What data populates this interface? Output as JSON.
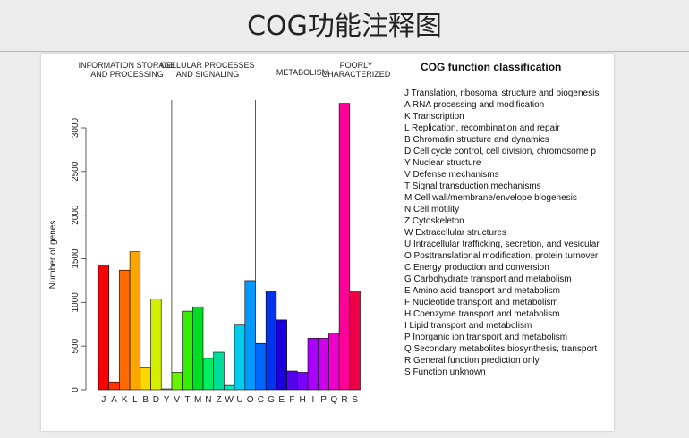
{
  "page": {
    "title": "COG功能注释图"
  },
  "chart_data": {
    "type": "bar",
    "title": "",
    "xlabel": "",
    "ylabel": "Number of genes",
    "ylim": [
      0,
      3300
    ],
    "yticks": [
      0,
      500,
      1000,
      1500,
      2000,
      2500,
      3000
    ],
    "grid": false,
    "categories": [
      "J",
      "A",
      "K",
      "L",
      "B",
      "D",
      "Y",
      "V",
      "T",
      "M",
      "N",
      "Z",
      "W",
      "U",
      "O",
      "C",
      "G",
      "E",
      "F",
      "H",
      "I",
      "P",
      "Q",
      "R",
      "S"
    ],
    "values": [
      1430,
      90,
      1370,
      1580,
      250,
      1040,
      10,
      200,
      900,
      950,
      360,
      430,
      50,
      740,
      1250,
      530,
      1130,
      800,
      215,
      200,
      590,
      590,
      650,
      3280,
      1130
    ],
    "colors": [
      "#ff0000",
      "#ff3300",
      "#ff6a00",
      "#ffa500",
      "#ffd700",
      "#d4f000",
      "#a8ff00",
      "#66f500",
      "#33ee00",
      "#00dd22",
      "#00ee66",
      "#00dd99",
      "#00e6c3",
      "#00ccee",
      "#0099ff",
      "#0066ff",
      "#0033ee",
      "#1a00dd",
      "#5500ee",
      "#7a00ff",
      "#aa00ff",
      "#cc00ee",
      "#ee00cc",
      "#ff0099",
      "#ee0044"
    ],
    "group_labels": [
      [
        "INFORMATION STORAGE",
        "AND PROCESSING"
      ],
      [
        "CELLULAR PROCESSES",
        "AND SIGNALING"
      ],
      [
        "METABOLISM"
      ],
      [
        "POORLY",
        "CHARACTERIZED"
      ]
    ],
    "group_dividers_after": [
      "Y",
      "O"
    ],
    "legend_title": "COG function classification",
    "legend_placement": "right",
    "legend": [
      "J Translation, ribosomal structure and biogenesis",
      "A RNA processing and modification",
      "K Transcription",
      "L Replication, recombination and repair",
      "B Chromatin structure and dynamics",
      "D Cell cycle control, cell division, chromosome p",
      "Y Nuclear structure",
      "V Defense mechanisms",
      "T Signal transduction mechanisms",
      "M Cell wall/membrane/envelope biogenesis",
      "N Cell motility",
      "Z Cytoskeleton",
      "W Extracellular structures",
      "U Intracellular trafficking, secretion, and vesicular",
      "O Posttranslational modification, protein turnover",
      "C Energy production and conversion",
      "G Carbohydrate transport and metabolism",
      "E Amino acid transport and metabolism",
      "F Nucleotide transport and metabolism",
      "H Coenzyme transport and metabolism",
      "I Lipid transport and metabolism",
      "P Inorganic ion transport and metabolism",
      "Q Secondary metabolites biosynthesis, transport",
      "R General function prediction only",
      "S Function unknown"
    ]
  }
}
